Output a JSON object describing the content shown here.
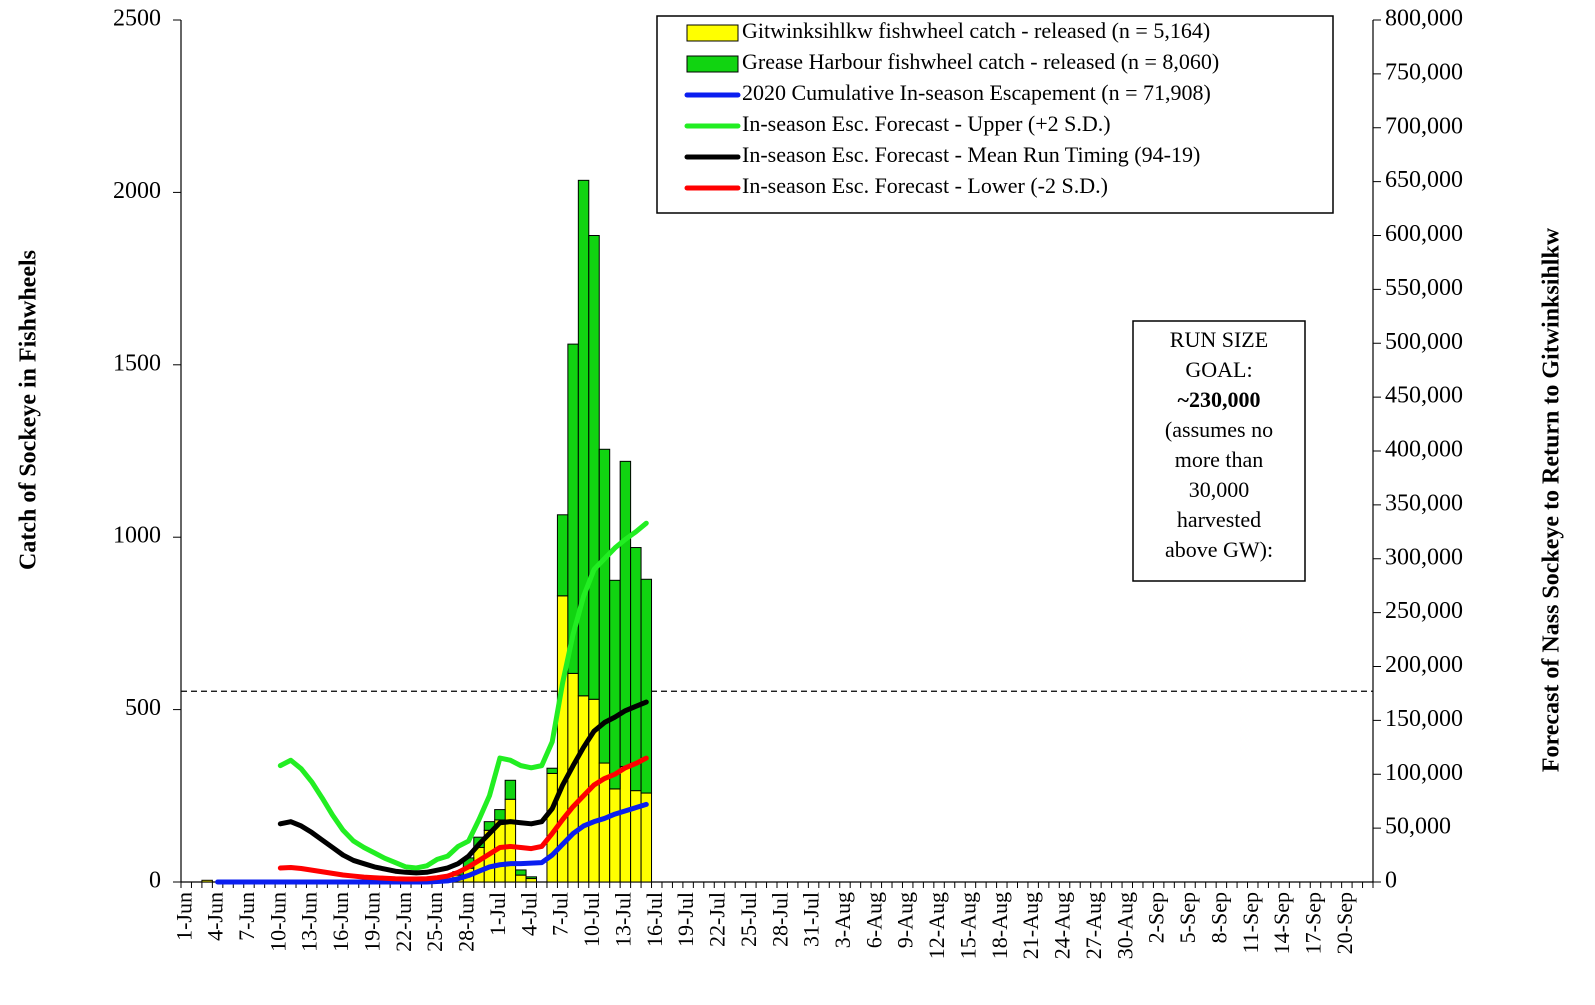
{
  "chart_data": {
    "type": "bar",
    "stacked": true,
    "y_axis_label": "Catch of Sockeye in Fishwheels",
    "y2_axis_label": "Forecast of Nass Sockeye to Return to Gitwinksihlkw",
    "legend": "upper right",
    "categories": [
      "1-Jun",
      null,
      null,
      "4-Jun",
      null,
      null,
      "7-Jun",
      null,
      null,
      "10-Jun",
      null,
      null,
      "13-Jun",
      null,
      null,
      "16-Jun",
      null,
      null,
      "19-Jun",
      null,
      null,
      "22-Jun",
      null,
      null,
      "25-Jun",
      null,
      null,
      "28-Jun",
      null,
      null,
      "1-Jul",
      null,
      null,
      "4-Jul",
      null,
      null,
      "7-Jul",
      null,
      null,
      "10-Jul",
      null,
      null,
      "13-Jul",
      null,
      null,
      "16-Jul",
      null,
      null,
      "19-Jul",
      null,
      null,
      "22-Jul",
      null,
      null,
      "25-Jul",
      null,
      null,
      "28-Jul",
      null,
      null,
      "31-Jul",
      null,
      null,
      "3-Aug",
      null,
      null,
      "6-Aug",
      null,
      null,
      "9-Aug",
      null,
      null,
      "12-Aug",
      null,
      null,
      "15-Aug",
      null,
      null,
      "18-Aug",
      null,
      null,
      "21-Aug",
      null,
      null,
      "24-Aug",
      null,
      null,
      "27-Aug",
      null,
      null,
      "30-Aug",
      null,
      null,
      "2-Sep",
      null,
      null,
      "5-Sep",
      null,
      null,
      "8-Sep",
      null,
      null,
      "11-Sep",
      null,
      null,
      "14-Sep",
      null,
      null,
      "17-Sep",
      null,
      null,
      "20-Sep",
      null,
      null
    ],
    "ylim": [
      0,
      2500
    ],
    "yticks": [
      0,
      500,
      1000,
      1500,
      2000,
      2500
    ],
    "y2lim": [
      0,
      800000
    ],
    "y2ticks": [
      0,
      {
        "value": 50000,
        "label": "50,000"
      },
      {
        "value": 100000,
        "label": "100,000"
      },
      {
        "value": 150000,
        "label": "150,000"
      },
      {
        "value": 200000,
        "label": "200,000"
      },
      {
        "value": 250000,
        "label": "250,000"
      },
      {
        "value": 300000,
        "label": "300,000"
      },
      {
        "value": 350000,
        "label": "350,000"
      },
      {
        "value": 400000,
        "label": "400,000"
      },
      {
        "value": 450000,
        "label": "450,000"
      },
      {
        "value": 500000,
        "label": "500,000"
      },
      {
        "value": 550000,
        "label": "550,000"
      },
      {
        "value": 600000,
        "label": "600,000"
      },
      {
        "value": 650000,
        "label": "650,000"
      },
      {
        "value": 700000,
        "label": "700,000"
      },
      {
        "value": 750000,
        "label": "750,000"
      },
      {
        "value": 800000,
        "label": "800,000"
      }
    ],
    "hline_y2": 177000,
    "series": [
      {
        "name": "Gitwinksihlkw fishwheel catch - released (n = 5,164)",
        "type": "bar",
        "color": "#ffff00",
        "values": [
          null,
          null,
          5,
          null,
          null,
          null,
          null,
          null,
          null,
          null,
          null,
          null,
          null,
          null,
          null,
          null,
          null,
          null,
          null,
          null,
          null,
          null,
          null,
          null,
          null,
          null,
          20,
          40,
          100,
          150,
          180,
          240,
          20,
          10,
          0,
          315,
          830,
          605,
          540,
          530,
          345,
          270,
          335,
          265,
          258,
          null,
          null,
          null,
          null,
          null,
          null,
          null,
          null,
          null,
          null,
          null,
          null,
          null,
          null,
          null,
          null,
          null,
          null,
          null,
          null,
          null,
          null,
          null,
          null,
          null,
          null,
          null,
          null,
          null,
          null,
          null,
          null,
          null,
          null,
          null,
          null,
          null,
          null,
          null,
          null,
          null,
          null,
          null,
          null,
          null,
          null,
          null,
          null,
          null,
          null,
          null,
          null,
          null,
          null,
          null,
          null,
          null,
          null,
          null,
          null,
          null,
          null,
          null,
          null,
          null,
          null,
          null,
          null,
          null
        ]
      },
      {
        "name": "Grease Harbour fishwheel catch - released (n = 8,060)",
        "type": "bar",
        "color": "#11d411",
        "values": [
          null,
          null,
          null,
          null,
          null,
          null,
          null,
          null,
          null,
          null,
          null,
          null,
          null,
          null,
          null,
          null,
          null,
          null,
          null,
          null,
          null,
          null,
          null,
          null,
          null,
          null,
          10,
          30,
          30,
          25,
          30,
          55,
          15,
          5,
          0,
          15,
          235,
          955,
          1495,
          1345,
          910,
          605,
          885,
          705,
          620,
          null,
          null,
          null,
          null,
          null,
          null,
          null,
          null,
          null,
          null,
          null,
          null,
          null,
          null,
          null,
          null,
          null,
          null,
          null,
          null,
          null,
          null,
          null,
          null,
          null,
          null,
          null,
          null,
          null,
          null,
          null,
          null,
          null,
          null,
          null,
          null,
          null,
          null,
          null,
          null,
          null,
          null,
          null,
          null,
          null,
          null,
          null,
          null,
          null,
          null,
          null,
          null,
          null,
          null,
          null,
          null,
          null,
          null,
          null,
          null,
          null,
          null,
          null,
          null,
          null,
          null,
          null,
          null,
          null
        ]
      },
      {
        "name": "2020 Cumulative In-season Escapement (n = 71,908)",
        "type": "line",
        "axis": "y2",
        "color": "#0a1ef0",
        "values": [
          null,
          null,
          null,
          0,
          0,
          0,
          0,
          0,
          0,
          0,
          0,
          0,
          0,
          0,
          0,
          0,
          0,
          0,
          0,
          0,
          0,
          0,
          0,
          0,
          500,
          1000,
          3000,
          6000,
          10000,
          14000,
          16000,
          17000,
          17000,
          17500,
          18000,
          25000,
          35000,
          45000,
          52000,
          56000,
          59000,
          63000,
          66000,
          69000,
          72000,
          null,
          null,
          null,
          null,
          null,
          null,
          null,
          null,
          null,
          null,
          null,
          null,
          null,
          null,
          null,
          null,
          null,
          null,
          null,
          null,
          null,
          null,
          null,
          null,
          null,
          null,
          null,
          null,
          null,
          null,
          null,
          null,
          null,
          null,
          null,
          null,
          null,
          null,
          null,
          null,
          null,
          null,
          null,
          null,
          null,
          null,
          null,
          null,
          null,
          null,
          null,
          null,
          null,
          null,
          null,
          null,
          null,
          null,
          null,
          null,
          null,
          null,
          null,
          null,
          null,
          null,
          null,
          null,
          null
        ]
      },
      {
        "name": "In-season Esc. Forecast - Upper (+2 S.D.)",
        "type": "line",
        "axis": "y2",
        "color": "#22ee22",
        "values": [
          null,
          null,
          null,
          null,
          null,
          null,
          null,
          null,
          null,
          108000,
          113000,
          105000,
          93000,
          78000,
          62000,
          48000,
          38000,
          32000,
          27000,
          22000,
          18000,
          14000,
          13000,
          15000,
          21000,
          24000,
          33000,
          38000,
          58000,
          80000,
          115000,
          113000,
          108000,
          106000,
          108000,
          130000,
          185000,
          230000,
          265000,
          290000,
          300000,
          310000,
          318000,
          325000,
          333000,
          null,
          null,
          null,
          null,
          null,
          null,
          null,
          null,
          null,
          null,
          null,
          null,
          null,
          null,
          null,
          null,
          null,
          null,
          null,
          null,
          null,
          null,
          null,
          null,
          null,
          null,
          null,
          null,
          null,
          null,
          null,
          null,
          null,
          null,
          null,
          null,
          null,
          null,
          null,
          null,
          null,
          null,
          null,
          null,
          null,
          null,
          null,
          null,
          null,
          null,
          null,
          null,
          null,
          null,
          null,
          null,
          null,
          null,
          null,
          null,
          null,
          null,
          null,
          null,
          null,
          null,
          null,
          null,
          null
        ]
      },
      {
        "name": "In-season Esc. Forecast - Mean Run Timing (94-19)",
        "type": "line",
        "axis": "y2",
        "color": "#000000",
        "values": [
          null,
          null,
          null,
          null,
          null,
          null,
          null,
          null,
          null,
          54000,
          56000,
          52000,
          46000,
          39000,
          32000,
          25000,
          20000,
          17000,
          14000,
          12000,
          10000,
          9000,
          8500,
          9000,
          11000,
          13000,
          17000,
          24000,
          35000,
          45000,
          55000,
          56000,
          55000,
          54000,
          56000,
          68000,
          90000,
          108000,
          125000,
          140000,
          148000,
          153000,
          159000,
          163000,
          167000,
          null,
          null,
          null,
          null,
          null,
          null,
          null,
          null,
          null,
          null,
          null,
          null,
          null,
          null,
          null,
          null,
          null,
          null,
          null,
          null,
          null,
          null,
          null,
          null,
          null,
          null,
          null,
          null,
          null,
          null,
          null,
          null,
          null,
          null,
          null,
          null,
          null,
          null,
          null,
          null,
          null,
          null,
          null,
          null,
          null,
          null,
          null,
          null,
          null,
          null,
          null,
          null,
          null,
          null,
          null,
          null,
          null,
          null,
          null,
          null,
          null,
          null,
          null,
          null,
          null,
          null,
          null,
          null,
          null
        ]
      },
      {
        "name": "In-season Esc. Forecast - Lower (-2 S.D.)",
        "type": "line",
        "axis": "y2",
        "color": "#ff0000",
        "values": [
          null,
          null,
          null,
          null,
          null,
          null,
          null,
          null,
          null,
          13000,
          13500,
          12500,
          11000,
          9500,
          8000,
          6500,
          5500,
          4500,
          4000,
          3500,
          3000,
          2800,
          2800,
          3000,
          4000,
          5500,
          9000,
          14000,
          20000,
          26000,
          32000,
          33000,
          32000,
          31000,
          33000,
          45000,
          58000,
          70000,
          80000,
          90000,
          96000,
          100000,
          106000,
          110000,
          115000,
          null,
          null,
          null,
          null,
          null,
          null,
          null,
          null,
          null,
          null,
          null,
          null,
          null,
          null,
          null,
          null,
          null,
          null,
          null,
          null,
          null,
          null,
          null,
          null,
          null,
          null,
          null,
          null,
          null,
          null,
          null,
          null,
          null,
          null,
          null,
          null,
          null,
          null,
          null,
          null,
          null,
          null,
          null,
          null,
          null,
          null,
          null,
          null,
          null,
          null,
          null,
          null,
          null,
          null,
          null,
          null,
          null,
          null,
          null,
          null,
          null,
          null,
          null,
          null,
          null,
          null,
          null,
          null,
          null
        ]
      }
    ],
    "annotation": {
      "lines": [
        "RUN SIZE",
        "GOAL:",
        {
          "text": "~230,000",
          "bold": true
        },
        "(assumes no",
        "more than",
        "30,000",
        "harvested",
        "above GW):"
      ]
    }
  }
}
